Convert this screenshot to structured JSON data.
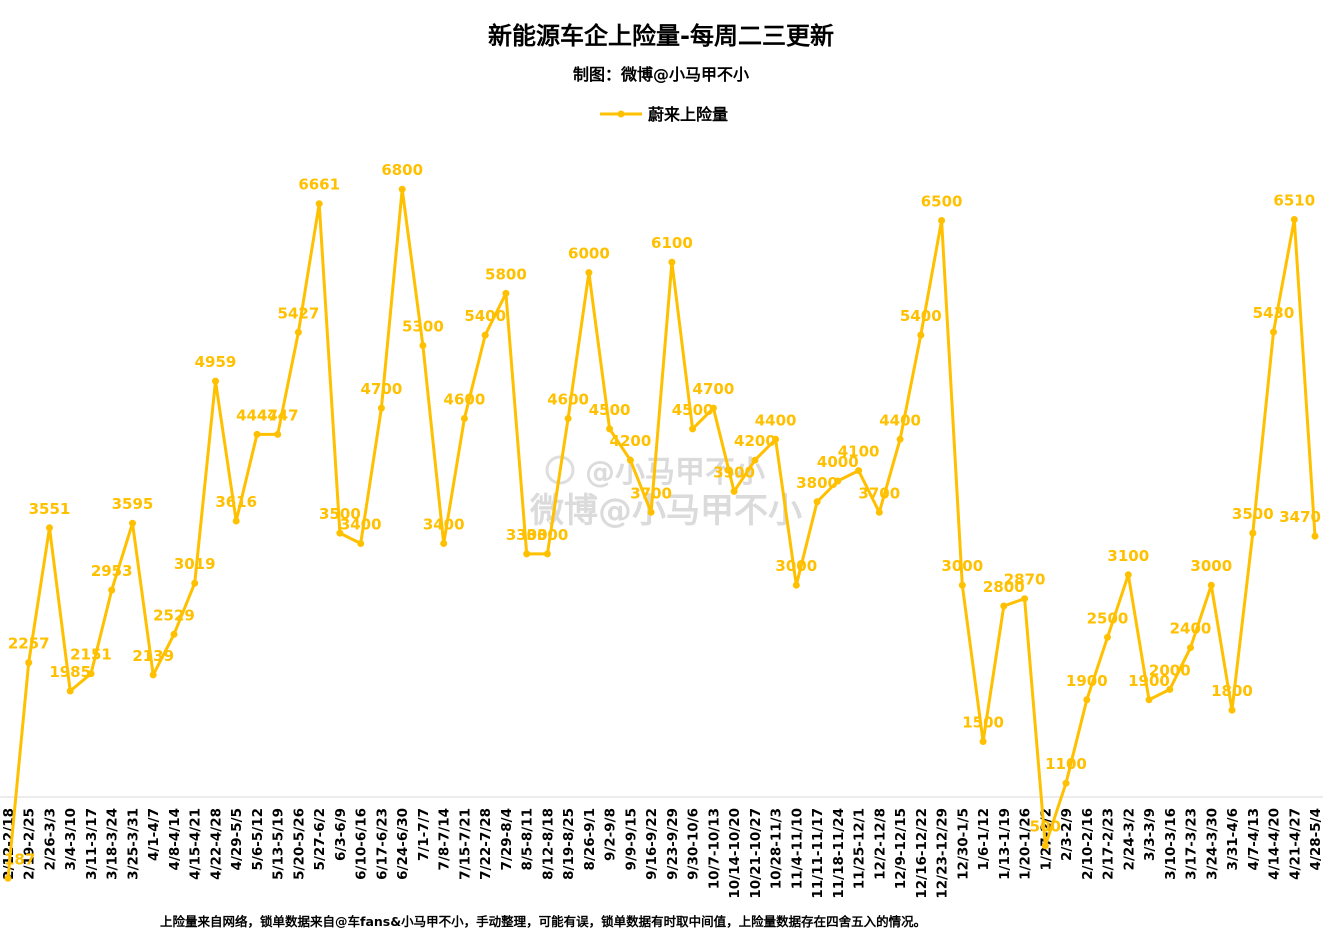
{
  "title": "新能源车企上险量-每周二三更新",
  "subtitle": "制图：微博@小马甲不小",
  "footer": "上险量来自网络，锁单数据来自@车fans&小马甲不小，手动整理，可能有误，锁单数据有时取中间值，上险量数据存在四舍五入的情况。",
  "watermark": {
    "line1": "@小马甲不小",
    "line2": "微博@小马甲不小"
  },
  "colors": {
    "series": "#FFC000",
    "label": "#FFC000",
    "text": "#000000"
  },
  "chart_data": {
    "type": "line",
    "title": "新能源车企上险量-每周二三更新",
    "xlabel": "",
    "ylabel": "",
    "ylim": [
      0,
      7500
    ],
    "grid": false,
    "legend_position": "top-center",
    "categories": [
      "2/12-2/18",
      "2/19-2/25",
      "2/26-3/3",
      "3/4-3/10",
      "3/11-3/17",
      "3/18-3/24",
      "3/25-3/31",
      "4/1-4/7",
      "4/8-4/14",
      "4/15-4/21",
      "4/22-4/28",
      "4/29-5/5",
      "5/6-5/12",
      "5/13-5/19",
      "5/20-5/26",
      "5/27-6/2",
      "6/3-6/9",
      "6/10-6/16",
      "6/17-6/23",
      "6/24-6/30",
      "7/1-7/7",
      "7/8-7/14",
      "7/15-7/21",
      "7/22-7/28",
      "7/29-8/4",
      "8/5-8/11",
      "8/12-8/18",
      "8/19-8/25",
      "8/26-9/1",
      "9/2-9/8",
      "9/9-9/15",
      "9/16-9/22",
      "9/23-9/29",
      "9/30-10/6",
      "10/7-10/13",
      "10/14-10/20",
      "10/21-10/27",
      "10/28-11/3",
      "11/4-11/10",
      "11/11-11/17",
      "11/18-11/24",
      "11/25-12/1",
      "12/2-12/8",
      "12/9-12/15",
      "12/16-12/22",
      "12/23-12/29",
      "12/30-1/5",
      "1/6-1/12",
      "1/13-1/19",
      "1/20-1/26",
      "1/27-2/2",
      "2/3-2/9",
      "2/10-2/16",
      "2/17-2/23",
      "2/24-3/2",
      "3/3-3/9",
      "3/10-3/16",
      "3/17-3/23",
      "3/24-3/30",
      "3/31-4/6",
      "4/7-4/13",
      "4/14-4/20",
      "4/21-4/27",
      "4/28-5/4"
    ],
    "series": [
      {
        "name": "蔚来上险量",
        "values": [
          187,
          2257,
          3551,
          1985,
          2151,
          2953,
          3595,
          2139,
          2529,
          3019,
          4959,
          3616,
          4447,
          4447,
          5427,
          6661,
          3500,
          3400,
          4700,
          6800,
          5300,
          3400,
          4600,
          5400,
          5800,
          3300,
          3300,
          4600,
          6000,
          4500,
          4200,
          3700,
          6100,
          4500,
          4700,
          3900,
          4200,
          4400,
          3000,
          3800,
          4000,
          4100,
          3700,
          4400,
          5400,
          6500,
          3000,
          1500,
          2800,
          2870,
          500,
          1100,
          1900,
          2500,
          3100,
          1900,
          2000,
          2400,
          3000,
          1800,
          3500,
          5430,
          6510,
          3470
        ]
      }
    ]
  }
}
